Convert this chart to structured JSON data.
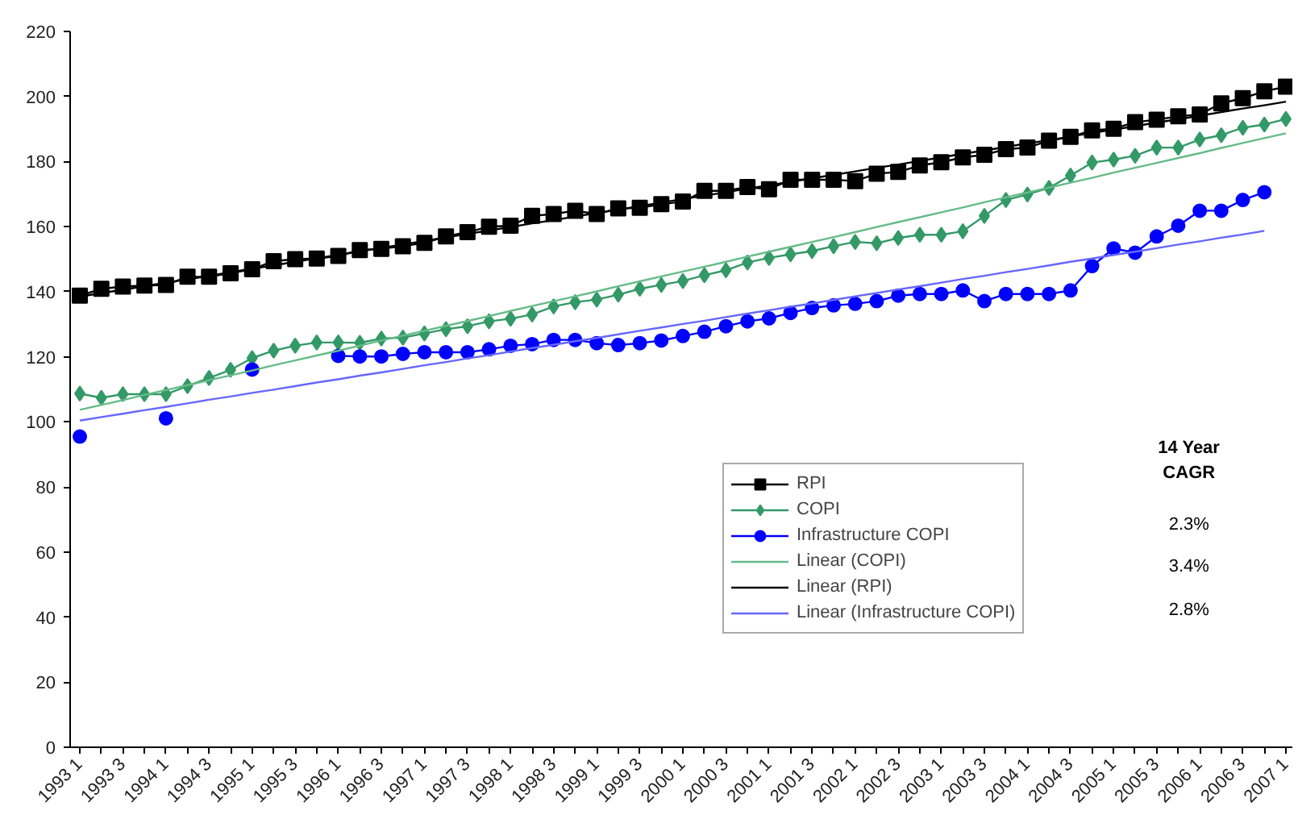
{
  "chart_data": {
    "type": "line",
    "categories": [
      "1993 1",
      null,
      "1993 3",
      null,
      "1994 1",
      null,
      "1994 3",
      null,
      "1995 1",
      null,
      "1995 3",
      null,
      "1996 1",
      null,
      "1996 3",
      null,
      "1997 1",
      null,
      "1997 3",
      null,
      "1998 1",
      null,
      "1998 3",
      null,
      "1999 1",
      null,
      "1999 3",
      null,
      "2000 1",
      null,
      "2000 3",
      null,
      "2001 1",
      null,
      "2001 3",
      null,
      "2002 1",
      null,
      "2002 3",
      null,
      "2003 1",
      null,
      "2003 3",
      null,
      "2004 1",
      null,
      "2004 3",
      null,
      "2005 1",
      null,
      "2005 3",
      null,
      "2006 1",
      null,
      "2006 3",
      null,
      "2007 1"
    ],
    "series": [
      {
        "name": "RPI",
        "color": "#000000",
        "marker": "square",
        "values": [
          138.8,
          140.9,
          141.6,
          141.9,
          142.1,
          144.6,
          144.6,
          145.7,
          146.9,
          149.4,
          150,
          150.2,
          151,
          152.8,
          153.2,
          154,
          155,
          157,
          158.3,
          160,
          160.3,
          163.3,
          163.9,
          164.9,
          163.9,
          165.6,
          165.8,
          166.9,
          167.7,
          171,
          171,
          172.2,
          171.5,
          174.4,
          174.4,
          174.4,
          174,
          176.3,
          176.8,
          178.8,
          179.8,
          181.3,
          182.1,
          183.8,
          184.3,
          186.4,
          187.6,
          189.6,
          190.1,
          192.1,
          192.9,
          193.9,
          194.5,
          197.9,
          199.5,
          201.6,
          203
        ]
      },
      {
        "name": "COPI",
        "color": "#339966",
        "marker": "diamond",
        "values": [
          108.7,
          107.4,
          108.5,
          108.5,
          108.5,
          111,
          113.5,
          116,
          119.6,
          121.9,
          123.4,
          124.4,
          124.4,
          124.3,
          125.6,
          125.9,
          127.2,
          128.5,
          129.4,
          130.9,
          131.7,
          133,
          135.5,
          136.8,
          137.6,
          139.1,
          140.9,
          142.1,
          143.3,
          145.1,
          146.6,
          149,
          150.4,
          151.5,
          152.5,
          154,
          155.3,
          154.9,
          156.5,
          157.5,
          157.5,
          158.6,
          163.3,
          168.2,
          169.9,
          171.9,
          175.7,
          179.7,
          180.6,
          181.8,
          184.3,
          184.3,
          186.8,
          188.1,
          190.4,
          191.4,
          193.1
        ]
      },
      {
        "name": "Infrastructure COPI",
        "color": "#0000ff",
        "marker": "circle",
        "values": [
          95.5,
          null,
          null,
          null,
          101.1,
          null,
          null,
          null,
          116.1,
          null,
          null,
          null,
          120.3,
          120.1,
          120.1,
          120.9,
          121.4,
          121.4,
          121.4,
          122.3,
          123.4,
          123.9,
          125.2,
          125.2,
          124.2,
          123.6,
          124.2,
          125,
          126.4,
          127.7,
          129.4,
          130.9,
          131.8,
          133.5,
          135,
          135.8,
          136.3,
          137.1,
          138.8,
          139.3,
          139.3,
          140.4,
          137.1,
          139.3,
          139.3,
          139.3,
          140.4,
          147.9,
          153.3,
          152,
          157,
          160.3,
          164.9,
          164.9,
          168.2,
          170.6,
          null
        ]
      },
      {
        "name": "Linear (COPI)",
        "color": "#66bb88",
        "marker": "none",
        "values": [
          103.7,
          105.2,
          106.7,
          108.3,
          109.8,
          111.3,
          112.8,
          114.3,
          115.8,
          117.4,
          118.9,
          120.4,
          121.9,
          123.4,
          125,
          126.5,
          128,
          129.5,
          131,
          132.5,
          134.1,
          135.6,
          137.1,
          138.6,
          140.1,
          141.7,
          143.2,
          144.7,
          146.2,
          147.7,
          149.2,
          150.8,
          152.3,
          153.8,
          155.3,
          156.8,
          158.3,
          159.9,
          161.4,
          162.9,
          164.4,
          165.9,
          167.5,
          169,
          170.5,
          172,
          173.5,
          175,
          176.6,
          178.1,
          179.6,
          181.1,
          182.6,
          184.2,
          185.7,
          187.2,
          188.7
        ]
      },
      {
        "name": "Linear (RPI)",
        "color": "#000000",
        "marker": "none",
        "values": [
          138.5,
          139.6,
          140.6,
          141.7,
          142.8,
          143.8,
          144.9,
          146,
          147.1,
          148.1,
          149.2,
          150.3,
          151.3,
          152.4,
          153.5,
          154.5,
          155.6,
          156.7,
          157.8,
          158.8,
          159.9,
          161,
          162,
          163.1,
          164.2,
          165.2,
          166.3,
          167.4,
          168.5,
          169.5,
          170.6,
          171.7,
          172.7,
          173.8,
          174.9,
          175.9,
          177,
          178.1,
          179.1,
          180.2,
          181.3,
          182.4,
          183.4,
          184.5,
          185.6,
          186.6,
          187.7,
          188.8,
          189.8,
          190.9,
          192,
          193,
          194.1,
          195.2,
          196.3,
          197.3,
          198.4
        ]
      },
      {
        "name": "Linear (Infrastructure COPI)",
        "color": "#6666ff",
        "marker": "none",
        "values": [
          100.4,
          101.5,
          102.5,
          103.6,
          104.6,
          105.7,
          106.8,
          107.8,
          108.9,
          109.9,
          111,
          112.1,
          113.1,
          114.2,
          115.2,
          116.3,
          117.4,
          118.4,
          119.5,
          120.5,
          121.6,
          122.7,
          123.7,
          124.8,
          125.8,
          126.9,
          128,
          129,
          130.1,
          131.1,
          132.2,
          133.3,
          134.3,
          135.4,
          136.4,
          137.5,
          138.6,
          139.6,
          140.7,
          141.7,
          142.8,
          143.9,
          144.9,
          146,
          147,
          148.1,
          149.2,
          150.2,
          151.3,
          152.3,
          153.4,
          154.5,
          155.5,
          156.6,
          157.6,
          158.7,
          null
        ]
      }
    ],
    "ylim": [
      0,
      220
    ],
    "yticks": [
      0,
      20,
      40,
      60,
      80,
      100,
      120,
      140,
      160,
      180,
      200,
      220
    ],
    "grid": false,
    "legend": "bottom right",
    "annotations": [
      "14 Year\nCAGR",
      "2.3%",
      "3.4%",
      "2.8%"
    ]
  }
}
